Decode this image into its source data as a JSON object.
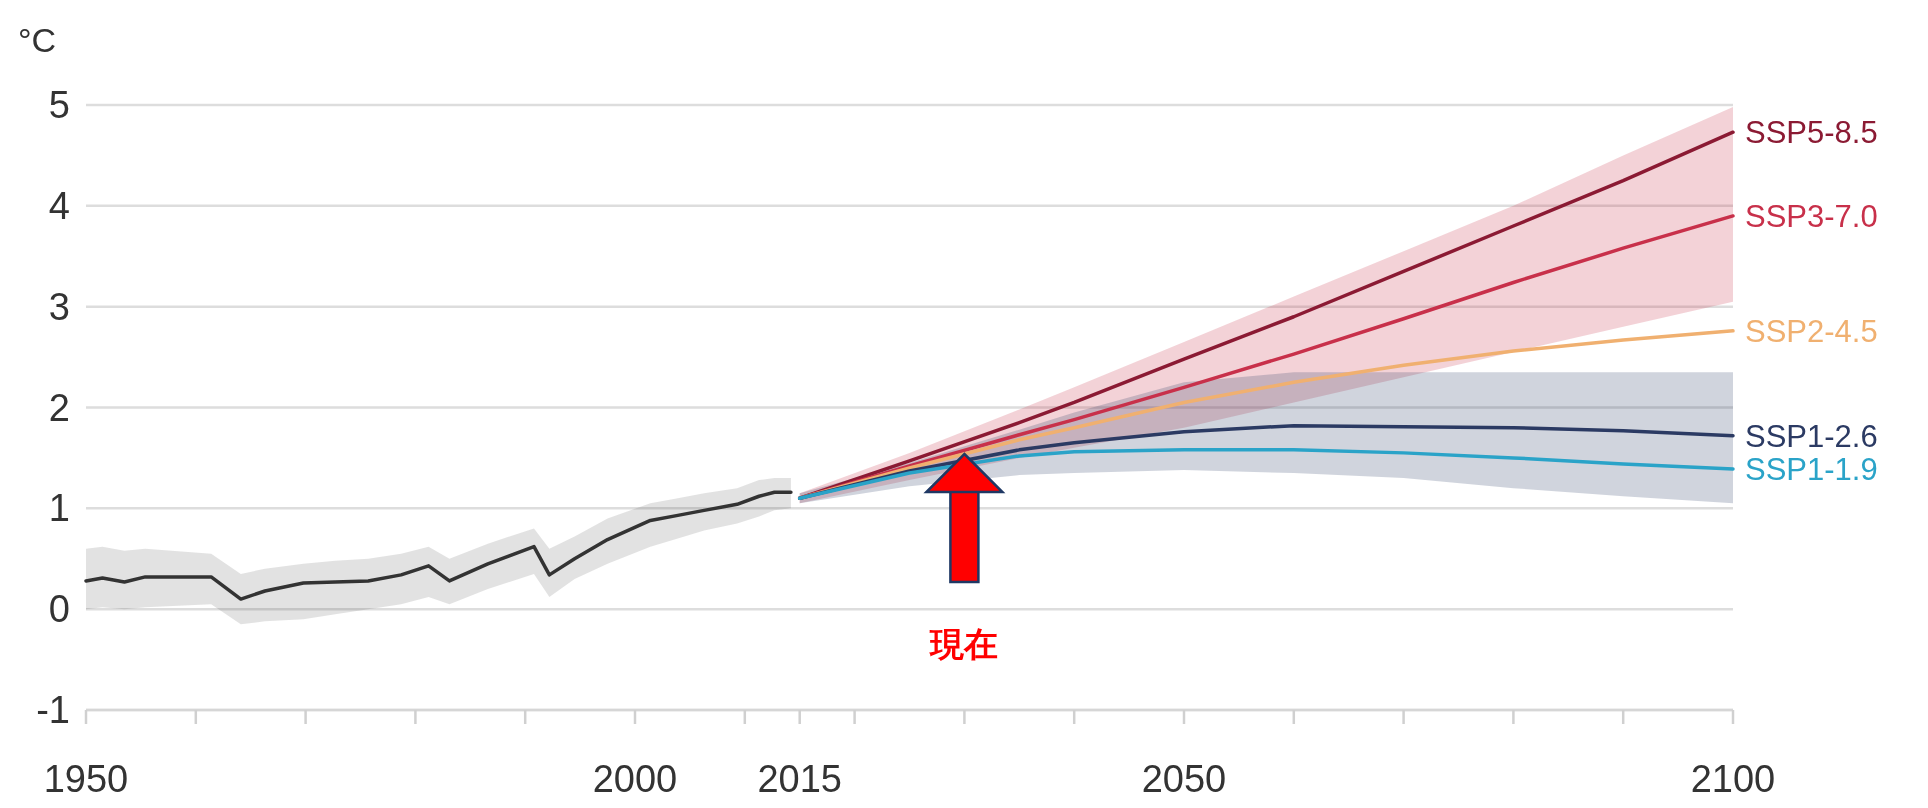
{
  "chart_data": {
    "type": "line",
    "ylabel": "°C",
    "xlim": [
      1950,
      2100
    ],
    "ylim": [
      -1,
      5
    ],
    "xticks": [
      1950,
      {
        "value": 1960,
        "label": null
      },
      {
        "value": 1970,
        "label": null
      },
      {
        "value": 1980,
        "label": null
      },
      {
        "value": 1990,
        "label": null
      },
      2000,
      {
        "value": 2010,
        "label": null
      },
      2015,
      {
        "value": 2020,
        "label": null
      },
      {
        "value": 2030,
        "label": null
      },
      {
        "value": 2040,
        "label": null
      },
      2050,
      {
        "value": 2060,
        "label": null
      },
      {
        "value": 2070,
        "label": null
      },
      {
        "value": 2080,
        "label": null
      },
      {
        "value": 2090,
        "label": null
      },
      2100
    ],
    "yticks": [
      {
        "value": -1,
        "label": "-1"
      },
      0,
      1,
      2,
      3,
      4,
      5
    ],
    "grid": "y",
    "series": [
      {
        "color": "#333333",
        "x": [
          1950,
          1951.5,
          1953.5,
          1955.4,
          1961.4,
          1964.1,
          1966.3,
          1969.8,
          1972.7,
          1975.7,
          1978.7,
          1981.2,
          1983.1,
          1986.6,
          1990.8,
          1992.2,
          1994.5,
          1997.5,
          2001.4,
          2003.9,
          2006.3,
          2009.3,
          2011.3,
          2012.7,
          2014.2
        ],
        "values": [
          0.28,
          0.31,
          0.27,
          0.32,
          0.32,
          0.1,
          0.18,
          0.26,
          0.27,
          0.28,
          0.34,
          0.43,
          0.28,
          0.45,
          0.62,
          0.34,
          0.5,
          0.69,
          0.88,
          0.93,
          0.98,
          1.04,
          1.12,
          1.16,
          1.16
        ],
        "lower": [
          0.0,
          0.02,
          0.0,
          0.02,
          0.05,
          -0.15,
          -0.12,
          -0.1,
          -0.05,
          0.0,
          0.05,
          0.12,
          0.05,
          0.2,
          0.35,
          0.12,
          0.3,
          0.45,
          0.62,
          0.7,
          0.78,
          0.85,
          0.92,
          0.98,
          1.0
        ],
        "upper": [
          0.6,
          0.62,
          0.58,
          0.6,
          0.55,
          0.35,
          0.4,
          0.45,
          0.48,
          0.5,
          0.55,
          0.62,
          0.5,
          0.65,
          0.8,
          0.6,
          0.72,
          0.9,
          1.05,
          1.1,
          1.15,
          1.2,
          1.28,
          1.3,
          1.3
        ]
      },
      {
        "name": "SSP5-8.5",
        "color": "#8b1a33",
        "x": [
          2015,
          2025,
          2035,
          2040,
          2050,
          2060,
          2070,
          2080,
          2090,
          2100
        ],
        "values": [
          1.1,
          1.47,
          1.85,
          2.05,
          2.48,
          2.9,
          3.35,
          3.8,
          4.25,
          4.73
        ]
      },
      {
        "name": "SSP3-7.0",
        "color": "#c8304a",
        "x": [
          2015,
          2025,
          2035,
          2040,
          2050,
          2060,
          2070,
          2080,
          2090,
          2100
        ],
        "values": [
          1.1,
          1.42,
          1.73,
          1.88,
          2.2,
          2.53,
          2.88,
          3.24,
          3.58,
          3.9
        ],
        "lower": [
          1.05,
          1.28,
          1.5,
          1.6,
          1.8,
          2.05,
          2.3,
          2.55,
          2.8,
          3.05
        ],
        "upper": [
          1.15,
          1.55,
          1.98,
          2.2,
          2.65,
          3.1,
          3.55,
          4.0,
          4.5,
          4.98
        ]
      },
      {
        "name": "SSP2-4.5",
        "color": "#f0b070",
        "x": [
          2015,
          2025,
          2035,
          2040,
          2050,
          2060,
          2070,
          2080,
          2090,
          2100
        ],
        "values": [
          1.1,
          1.4,
          1.68,
          1.8,
          2.05,
          2.25,
          2.42,
          2.56,
          2.67,
          2.76
        ]
      },
      {
        "name": "SSP1-2.6",
        "color": "#2b3a63",
        "x": [
          2015,
          2025,
          2035,
          2040,
          2050,
          2060,
          2070,
          2080,
          2090,
          2100
        ],
        "values": [
          1.1,
          1.37,
          1.58,
          1.65,
          1.76,
          1.82,
          1.81,
          1.8,
          1.77,
          1.72
        ],
        "lower": [
          1.05,
          1.22,
          1.33,
          1.35,
          1.38,
          1.35,
          1.3,
          1.2,
          1.12,
          1.05
        ],
        "upper": [
          1.15,
          1.45,
          1.78,
          1.95,
          2.25,
          2.35,
          2.35,
          2.35,
          2.35,
          2.35
        ]
      },
      {
        "name": "SSP1-1.9",
        "color": "#2aa3c8",
        "x": [
          2015,
          2025,
          2035,
          2040,
          2050,
          2060,
          2070,
          2080,
          2090,
          2100
        ],
        "values": [
          1.1,
          1.35,
          1.52,
          1.56,
          1.58,
          1.58,
          1.55,
          1.5,
          1.44,
          1.39
        ]
      }
    ],
    "ref_lines": [
      {
        "axis": "x",
        "value": 2030,
        "label": "現在",
        "color": "#ff0000"
      }
    ]
  }
}
